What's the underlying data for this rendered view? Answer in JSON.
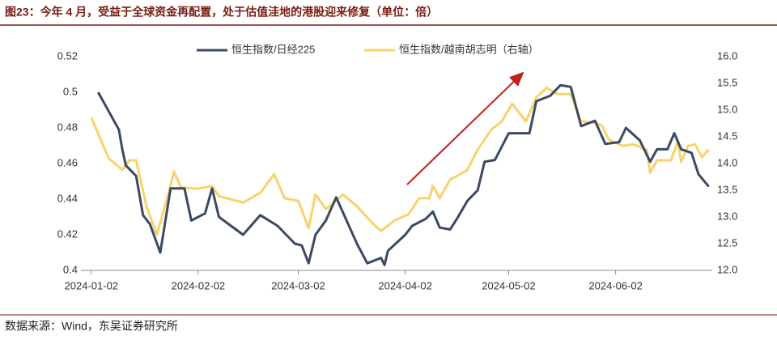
{
  "chart_data": {
    "type": "line",
    "title": "图23：今年 4 月，受益于全球资金再配置，处于估值洼地的港股迎来修复（单位：倍）",
    "source": "数据来源：Wind，东吴证券研究所",
    "legend": "top",
    "xlim": [
      "2023-12-30",
      "2024-06-30"
    ],
    "xticks": [
      "2024-01-02",
      "2024-02-02",
      "2024-03-02",
      "2024-04-02",
      "2024-05-02",
      "2024-06-02"
    ],
    "ylim": [
      0.4,
      0.52
    ],
    "yticks": [
      0.4,
      0.42,
      0.44,
      0.46,
      0.48,
      0.5,
      0.52
    ],
    "y2lim": [
      12,
      16
    ],
    "y2ticks": [
      {
        "value": 12,
        "label": "12.0"
      },
      12.5,
      {
        "value": 13,
        "label": "13.0"
      },
      13.5,
      {
        "value": 14,
        "label": "14.0"
      },
      14.5,
      {
        "value": 15,
        "label": "15.0"
      },
      15.5,
      {
        "value": 16,
        "label": "16.0"
      }
    ],
    "series": [
      {
        "name": "恒生指数/日经225",
        "color": "#3b4a63",
        "x": [
          "2024-01-04",
          "2024-01-10",
          "2024-01-11",
          "2024-01-12",
          "2024-01-15",
          "2024-01-17",
          "2024-01-19",
          "2024-01-22",
          "2024-01-25",
          "2024-01-29",
          "2024-01-31",
          "2024-02-04",
          "2024-02-06",
          "2024-02-08",
          "2024-02-15",
          "2024-02-20",
          "2024-02-25",
          "2024-03-01",
          "2024-03-03",
          "2024-03-05",
          "2024-03-07",
          "2024-03-10",
          "2024-03-13",
          "2024-03-16",
          "2024-03-19",
          "2024-03-22",
          "2024-03-26",
          "2024-03-27",
          "2024-03-28",
          "2024-04-02",
          "2024-04-04",
          "2024-04-08",
          "2024-04-10",
          "2024-04-12",
          "2024-04-15",
          "2024-04-17",
          "2024-04-20",
          "2024-04-23",
          "2024-04-25",
          "2024-04-28",
          "2024-05-02",
          "2024-05-08",
          "2024-05-10",
          "2024-05-14",
          "2024-05-17",
          "2024-05-20",
          "2024-05-23",
          "2024-05-27",
          "2024-05-30",
          "2024-06-03",
          "2024-06-05",
          "2024-06-09",
          "2024-06-12",
          "2024-06-14",
          "2024-06-17",
          "2024-06-19",
          "2024-06-21",
          "2024-06-24",
          "2024-06-26",
          "2024-06-29"
        ],
        "values": [
          0.5,
          0.479,
          0.468,
          0.459,
          0.453,
          0.431,
          0.426,
          0.41,
          0.446,
          0.446,
          0.428,
          0.432,
          0.446,
          0.43,
          0.42,
          0.431,
          0.425,
          0.415,
          0.414,
          0.404,
          0.42,
          0.428,
          0.441,
          0.428,
          0.415,
          0.404,
          0.407,
          0.403,
          0.411,
          0.42,
          0.425,
          0.429,
          0.433,
          0.424,
          0.423,
          0.429,
          0.439,
          0.445,
          0.461,
          0.462,
          0.477,
          0.477,
          0.495,
          0.498,
          0.504,
          0.503,
          0.481,
          0.484,
          0.471,
          0.472,
          0.48,
          0.473,
          0.461,
          0.468,
          0.468,
          0.477,
          0.468,
          0.466,
          0.454,
          0.447
        ]
      },
      {
        "name": "恒生指数/越南胡志明（右轴）",
        "color": "#f8d36c",
        "axis": "y2",
        "x": [
          "2024-01-02",
          "2024-01-04",
          "2024-01-07",
          "2024-01-11",
          "2024-01-13",
          "2024-01-15",
          "2024-01-18",
          "2024-01-21",
          "2024-01-24",
          "2024-01-26",
          "2024-01-28",
          "2024-02-02",
          "2024-02-06",
          "2024-02-08",
          "2024-02-15",
          "2024-02-20",
          "2024-02-24",
          "2024-02-27",
          "2024-03-02",
          "2024-03-05",
          "2024-03-07",
          "2024-03-10",
          "2024-03-15",
          "2024-03-19",
          "2024-03-24",
          "2024-03-26",
          "2024-03-30",
          "2024-04-03",
          "2024-04-06",
          "2024-04-09",
          "2024-04-10",
          "2024-04-12",
          "2024-04-15",
          "2024-04-18",
          "2024-04-20",
          "2024-04-23",
          "2024-04-27",
          "2024-04-30",
          "2024-05-03",
          "2024-05-07",
          "2024-05-10",
          "2024-05-13",
          "2024-05-16",
          "2024-05-20",
          "2024-05-23",
          "2024-05-27",
          "2024-05-29",
          "2024-05-31",
          "2024-06-04",
          "2024-06-07",
          "2024-06-11",
          "2024-06-12",
          "2024-06-14",
          "2024-06-18",
          "2024-06-20",
          "2024-06-21",
          "2024-06-23",
          "2024-06-25",
          "2024-06-27",
          "2024-06-29"
        ],
        "values": [
          14.86,
          14.56,
          14.1,
          13.88,
          14.06,
          14.06,
          13.2,
          12.67,
          13.35,
          13.85,
          13.55,
          13.53,
          13.58,
          13.39,
          13.27,
          13.45,
          13.8,
          13.35,
          13.3,
          12.79,
          13.42,
          13.15,
          13.42,
          13.2,
          12.85,
          12.74,
          12.94,
          13.05,
          13.35,
          13.35,
          13.58,
          13.35,
          13.7,
          13.8,
          13.88,
          14.26,
          14.64,
          14.79,
          15.12,
          14.79,
          15.24,
          15.42,
          15.3,
          15.3,
          14.79,
          14.76,
          14.71,
          14.45,
          14.33,
          14.36,
          14.26,
          13.83,
          14.06,
          14.06,
          14.41,
          14.03,
          14.33,
          14.36,
          14.12,
          14.26
        ]
      }
    ]
  }
}
